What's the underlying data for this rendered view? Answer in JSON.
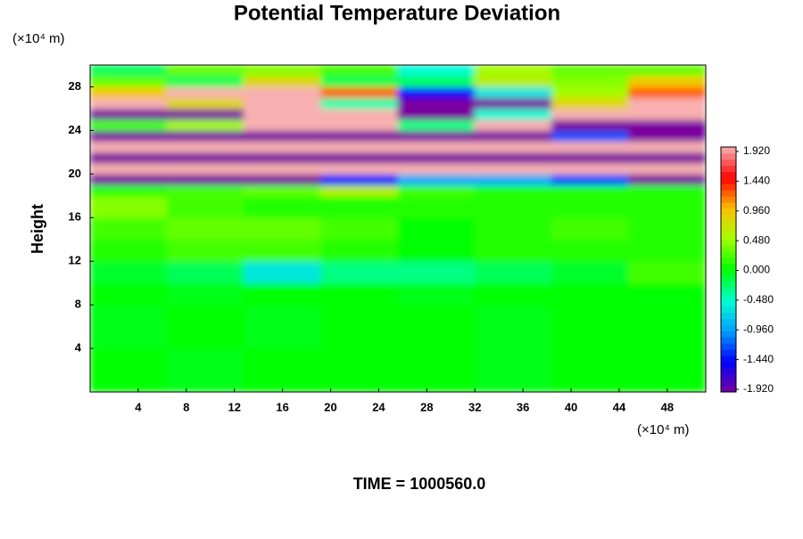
{
  "chart_data": {
    "type": "heatmap",
    "title": "Potential Temperature Deviation",
    "y_unit_label": "(×10⁴ m)",
    "x_unit_label": "(×10⁴ m)",
    "ylabel": "Height",
    "footer": "TIME = 1000560.0",
    "xlim": [
      0,
      51.2
    ],
    "ylim": [
      0,
      30
    ],
    "xticks": [
      4,
      8,
      12,
      16,
      20,
      24,
      28,
      32,
      36,
      40,
      44,
      48
    ],
    "yticks": [
      4,
      8,
      12,
      16,
      20,
      24,
      28
    ],
    "x_edges": [
      0,
      6.4,
      12.8,
      19.2,
      25.6,
      32,
      38.4,
      44.8,
      51.2
    ],
    "y_edges": [
      0,
      4,
      8,
      10,
      12,
      14,
      16,
      18,
      19,
      20,
      21,
      22,
      23,
      24,
      25,
      26,
      27,
      28,
      29,
      30
    ],
    "z": [
      [
        0,
        -0.05,
        0,
        0,
        0,
        -0.05,
        0,
        0
      ],
      [
        -0.05,
        0,
        -0.05,
        0,
        0,
        -0.05,
        0,
        0
      ],
      [
        0,
        -0.05,
        0,
        0,
        -0.05,
        0,
        0,
        0
      ],
      [
        -0.1,
        -0.2,
        -0.6,
        -0.3,
        -0.3,
        -0.2,
        -0.1,
        0.2
      ],
      [
        0.1,
        0.2,
        0.2,
        0.1,
        0,
        0.1,
        0.1,
        0.1
      ],
      [
        0.2,
        0.3,
        0.3,
        0.2,
        0,
        0.1,
        0.2,
        0.1
      ],
      [
        0.4,
        0.2,
        0.1,
        0.1,
        0.1,
        0.1,
        0.1,
        0.1
      ],
      [
        0.1,
        0.2,
        0.3,
        0.6,
        0.2,
        0.1,
        0.1,
        0.1
      ],
      [
        -2,
        -2,
        -2,
        -1.4,
        -0.9,
        -0.9,
        -1.2,
        -2
      ],
      [
        2,
        2,
        2,
        2,
        2,
        2,
        2,
        2
      ],
      [
        -2,
        -2,
        -2,
        -2,
        -2,
        -2,
        -2,
        -2
      ],
      [
        2,
        2,
        2,
        2,
        2,
        2,
        2,
        2
      ],
      [
        -2,
        -2,
        -2,
        -2,
        -2,
        -2,
        -1.2,
        -2
      ],
      [
        0.2,
        0.5,
        2,
        2,
        -0.3,
        2,
        -2,
        -2
      ],
      [
        -2,
        -2,
        2,
        2,
        -2,
        -0.5,
        2,
        2
      ],
      [
        2,
        0.8,
        2,
        -0.4,
        -2,
        -2,
        0.8,
        2
      ],
      [
        0.9,
        2,
        2,
        1.2,
        -1.4,
        -0.6,
        0.5,
        1.2
      ],
      [
        0.3,
        -0.2,
        0.8,
        -0.2,
        -0.2,
        0.6,
        0.4,
        0.9
      ],
      [
        -0.2,
        0.3,
        0.4,
        0.2,
        -0.5,
        0.5,
        0.3,
        0.3
      ]
    ],
    "colorbar": {
      "clim": [
        -1.92,
        1.92
      ],
      "colors": [
        "#7a00a0",
        "#0000ff",
        "#00a0ff",
        "#00ffd0",
        "#00ff00",
        "#a0ff00",
        "#ffc000",
        "#ff0000",
        "#f8b0b0"
      ],
      "ticks": [
        {
          "value": 1.92,
          "label": "1.920"
        },
        {
          "value": 1.44,
          "label": "1.440"
        },
        {
          "value": 0.96,
          "label": "0.960"
        },
        {
          "value": 0.48,
          "label": "0.480"
        },
        {
          "value": 0,
          "label": "0.000"
        },
        {
          "value": -0.48,
          "label": "-0.480"
        },
        {
          "value": -0.96,
          "label": "-0.960"
        },
        {
          "value": -1.44,
          "label": "-1.440"
        },
        {
          "value": -1.92,
          "label": "-1.920"
        }
      ]
    }
  }
}
